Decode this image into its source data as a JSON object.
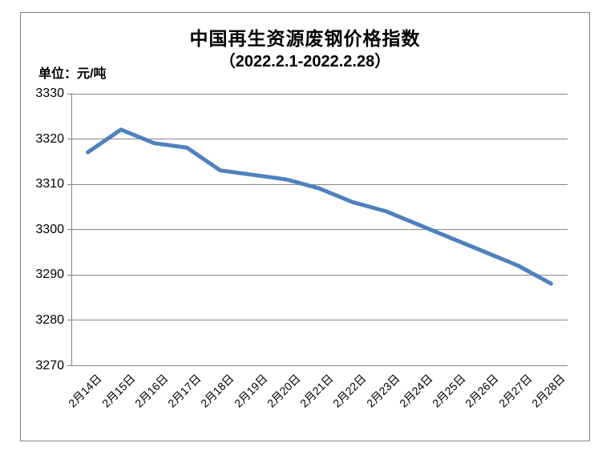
{
  "chart": {
    "title_line1": "中国再生资源废钢价格指数",
    "title_line2": "（2022.2.1-2022.2.28）",
    "unit_label": "单位：元/吨",
    "line_color": "#4F81BD",
    "grid_color": "#878787",
    "axis_color": "#808080",
    "border_color": "#808080"
  },
  "chart_data": {
    "type": "line",
    "title": "中国再生资源废钢价格指数（2022.2.1-2022.2.28）",
    "ylabel": "单位：元/吨",
    "categories": [
      "2月14日",
      "2月15日",
      "2月16日",
      "2月17日",
      "2月18日",
      "2月19日",
      "2月20日",
      "2月21日",
      "2月22日",
      "2月23日",
      "2月24日",
      "2月25日",
      "2月26日",
      "2月27日",
      "2月28日"
    ],
    "values": [
      3317,
      3322,
      3319,
      3318,
      3313,
      3312,
      3311,
      3309,
      3306,
      3304,
      3301,
      3298,
      3295,
      3292,
      3288
    ],
    "ylim": [
      3270,
      3330
    ],
    "yticks": [
      3330,
      3320,
      3310,
      3300,
      3290,
      3280,
      3270
    ],
    "grid": true,
    "legend": false
  }
}
